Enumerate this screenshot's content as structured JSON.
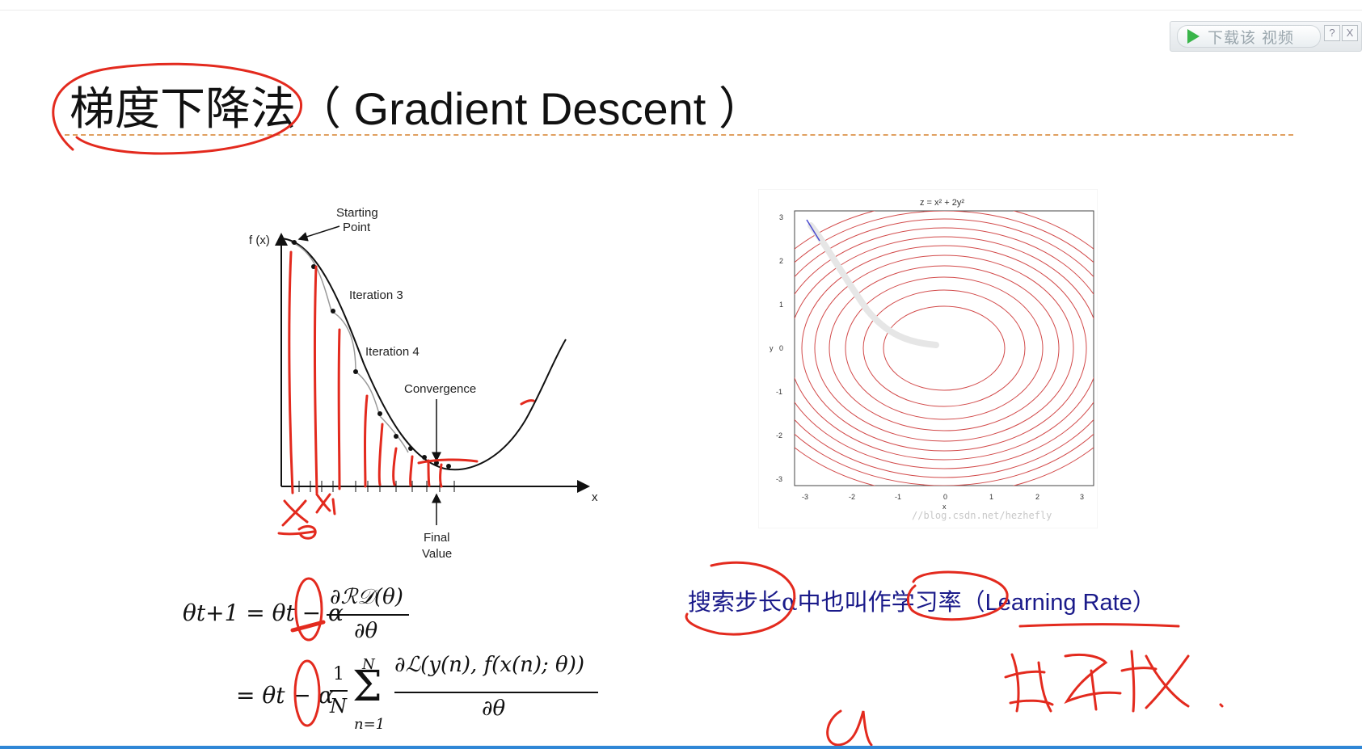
{
  "widget": {
    "download_label": "下载该 视频",
    "help_label": "?",
    "close_label": "X"
  },
  "title": {
    "text": "梯度下降法（ Gradient Descent ）"
  },
  "left_plot": {
    "y_axis_label": "f (x)",
    "x_axis_label": "x",
    "annotations": {
      "starting_point_line1": "Starting",
      "starting_point_line2": "Point",
      "iteration3": "Iteration 3",
      "iteration4": "Iteration 4",
      "convergence": "Convergence",
      "final_value_line1": "Final",
      "final_value_line2": "Value"
    }
  },
  "right_plot": {
    "title": "z = x² + 2y²",
    "y_axis_label": "y",
    "x_axis_label": "x",
    "x_ticks": [
      "-3",
      "-2",
      "-1",
      "0",
      "1",
      "2",
      "3"
    ],
    "y_ticks": [
      "3",
      "2",
      "1",
      "0",
      "-1",
      "-2",
      "-3"
    ],
    "watermark": "//blog.csdn.net/hezhefly"
  },
  "formula": {
    "lhs": "θt+1 = θt − α",
    "frac1_num": "∂ℛ𝒟(θ)",
    "frac1_den": "∂θ",
    "line2_prefix": "= θt − α",
    "frac2_num": "1",
    "frac2_den": "N",
    "sum_top": "N",
    "sum_bottom": "n=1",
    "frac3_num": "∂ℒ(y(n), f(x(n); θ))",
    "frac3_den": "∂θ"
  },
  "note": {
    "chinese": "搜索步长α中也叫作学习率",
    "english": "（Learning Rate）"
  },
  "colors": {
    "ink_red": "#e32a1e",
    "contour_red": "#d24a4a",
    "text_blue": "#1a1a8a",
    "title_rule": "#e0a060",
    "bottom_bar": "#2f87d6"
  }
}
